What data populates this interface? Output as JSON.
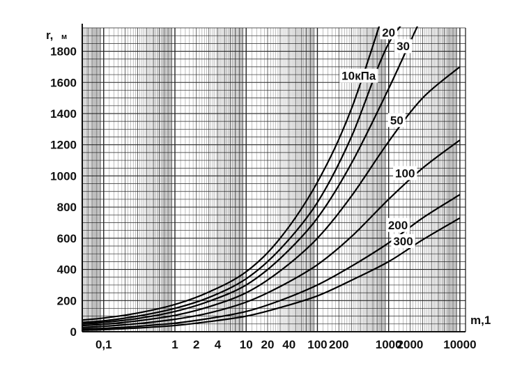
{
  "chart_data": {
    "type": "line",
    "title": "",
    "xscale": "log",
    "xlim": [
      0.05,
      12000
    ],
    "ylim": [
      0,
      1950
    ],
    "grid": true,
    "xlabel": {
      "symbol": "m,1"
    },
    "ylabel": {
      "symbol": "r,",
      "unit": "м"
    },
    "x_ticks": [
      {
        "value": 0.1,
        "label": "0,1"
      },
      {
        "value": 1,
        "label": "1"
      },
      {
        "value": 2,
        "label": "2"
      },
      {
        "value": 4,
        "label": "4"
      },
      {
        "value": 10,
        "label": "10"
      },
      {
        "value": 20,
        "label": "20"
      },
      {
        "value": 40,
        "label": "40"
      },
      {
        "value": 100,
        "label": "100"
      },
      {
        "value": 200,
        "label": "200"
      },
      {
        "value": 1000,
        "label": "1000"
      },
      {
        "value": 2000,
        "label": "2000"
      },
      {
        "value": 10000,
        "label": "10000"
      }
    ],
    "y_ticks": [
      0,
      200,
      400,
      600,
      800,
      1000,
      1200,
      1400,
      1600,
      1800
    ],
    "series": [
      {
        "name": "10кПа",
        "points": [
          [
            0.05,
            75
          ],
          [
            0.1,
            88
          ],
          [
            0.3,
            120
          ],
          [
            1,
            175
          ],
          [
            3,
            255
          ],
          [
            10,
            385
          ],
          [
            30,
            600
          ],
          [
            100,
            960
          ],
          [
            300,
            1430
          ],
          [
            1000,
            2150
          ]
        ]
      },
      {
        "name": "20",
        "points": [
          [
            0.05,
            60
          ],
          [
            0.1,
            70
          ],
          [
            0.3,
            100
          ],
          [
            1,
            150
          ],
          [
            3,
            220
          ],
          [
            10,
            340
          ],
          [
            30,
            530
          ],
          [
            100,
            830
          ],
          [
            300,
            1250
          ],
          [
            1000,
            1850
          ],
          [
            3000,
            2100
          ]
        ]
      },
      {
        "name": "30",
        "points": [
          [
            0.05,
            50
          ],
          [
            0.1,
            60
          ],
          [
            0.3,
            85
          ],
          [
            1,
            130
          ],
          [
            3,
            195
          ],
          [
            10,
            300
          ],
          [
            30,
            470
          ],
          [
            100,
            730
          ],
          [
            300,
            1080
          ],
          [
            1000,
            1560
          ],
          [
            3000,
            2030
          ],
          [
            5000,
            2200
          ]
        ]
      },
      {
        "name": "50",
        "points": [
          [
            0.05,
            40
          ],
          [
            0.1,
            48
          ],
          [
            0.3,
            70
          ],
          [
            1,
            105
          ],
          [
            3,
            160
          ],
          [
            10,
            250
          ],
          [
            30,
            390
          ],
          [
            100,
            600
          ],
          [
            300,
            870
          ],
          [
            1000,
            1220
          ],
          [
            3000,
            1500
          ],
          [
            10000,
            1700
          ]
        ]
      },
      {
        "name": "100",
        "points": [
          [
            0.05,
            28
          ],
          [
            0.1,
            35
          ],
          [
            0.3,
            52
          ],
          [
            1,
            80
          ],
          [
            3,
            120
          ],
          [
            10,
            190
          ],
          [
            30,
            290
          ],
          [
            100,
            430
          ],
          [
            300,
            610
          ],
          [
            1000,
            850
          ],
          [
            3000,
            1050
          ],
          [
            10000,
            1230
          ]
        ]
      },
      {
        "name": "200",
        "points": [
          [
            0.05,
            18
          ],
          [
            0.1,
            22
          ],
          [
            0.3,
            35
          ],
          [
            1,
            55
          ],
          [
            3,
            85
          ],
          [
            10,
            130
          ],
          [
            30,
            200
          ],
          [
            100,
            300
          ],
          [
            300,
            420
          ],
          [
            1000,
            570
          ],
          [
            3000,
            730
          ],
          [
            10000,
            880
          ]
        ]
      },
      {
        "name": "300",
        "points": [
          [
            0.05,
            10
          ],
          [
            0.1,
            14
          ],
          [
            0.3,
            24
          ],
          [
            1,
            40
          ],
          [
            3,
            65
          ],
          [
            10,
            100
          ],
          [
            30,
            155
          ],
          [
            100,
            230
          ],
          [
            300,
            330
          ],
          [
            1000,
            450
          ],
          [
            3000,
            590
          ],
          [
            10000,
            730
          ]
        ]
      }
    ]
  }
}
